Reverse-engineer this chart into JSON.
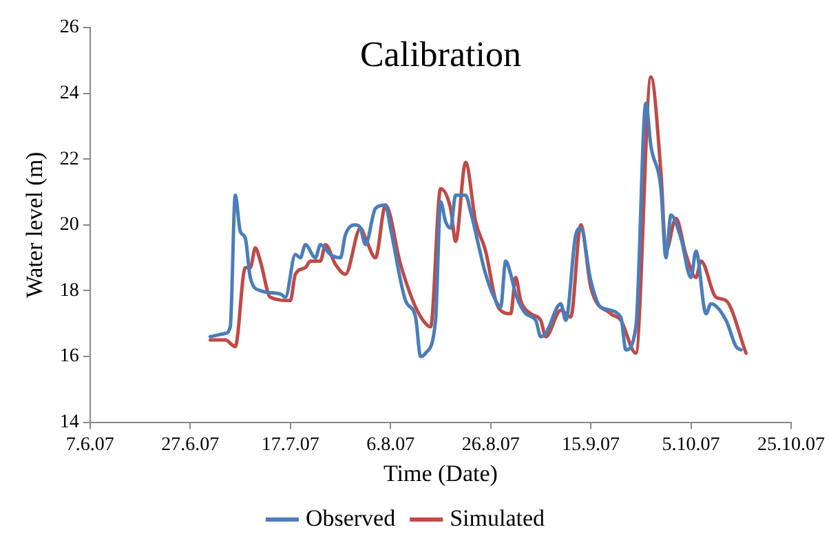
{
  "chart_data": {
    "type": "line",
    "title": "Calibration",
    "xlabel": "Time (Date)",
    "ylabel": "Water level (m)",
    "xlim": [
      "2007-06-07",
      "2007-10-25"
    ],
    "xticks": [
      {
        "value": "2007-06-07",
        "label": "7.6.07"
      },
      {
        "value": "2007-06-27",
        "label": "27.6.07"
      },
      {
        "value": "2007-07-17",
        "label": "17.7.07"
      },
      {
        "value": "2007-08-06",
        "label": "6.8.07"
      },
      {
        "value": "2007-08-26",
        "label": "26.8.07"
      },
      {
        "value": "2007-09-15",
        "label": "15.9.07"
      },
      {
        "value": "2007-10-05",
        "label": "5.10.07"
      },
      {
        "value": "2007-10-25",
        "label": "25.10.07"
      }
    ],
    "ylim": [
      14,
      26
    ],
    "yticks": [
      14,
      16,
      18,
      20,
      22,
      24,
      26
    ],
    "grid": false,
    "legend": "bottom",
    "marker": "none",
    "line_style": "solid",
    "series": [
      {
        "name": "Observed",
        "color": "#4a7ebb",
        "x": [
          "2007-07-01",
          "2007-07-04",
          "2007-07-05",
          "2007-07-06",
          "2007-07-07",
          "2007-07-08",
          "2007-07-09",
          "2007-07-11",
          "2007-07-15",
          "2007-07-16",
          "2007-07-18",
          "2007-07-19",
          "2007-07-20",
          "2007-07-22",
          "2007-07-23",
          "2007-07-25",
          "2007-07-27",
          "2007-07-28",
          "2007-07-30",
          "2007-07-31",
          "2007-08-01",
          "2007-08-03",
          "2007-08-05",
          "2007-08-06",
          "2007-08-09",
          "2007-08-11",
          "2007-08-12",
          "2007-08-13",
          "2007-08-15",
          "2007-08-16",
          "2007-08-17",
          "2007-08-18",
          "2007-08-19",
          "2007-08-21",
          "2007-08-22",
          "2007-08-25",
          "2007-08-27",
          "2007-08-28",
          "2007-08-29",
          "2007-08-30",
          "2007-08-31",
          "2007-09-02",
          "2007-09-04",
          "2007-09-05",
          "2007-09-06",
          "2007-09-09",
          "2007-09-10",
          "2007-09-12",
          "2007-09-13",
          "2007-09-15",
          "2007-09-17",
          "2007-09-21",
          "2007-09-22",
          "2007-09-24",
          "2007-09-26",
          "2007-09-27",
          "2007-09-29",
          "2007-09-30",
          "2007-10-01",
          "2007-10-03",
          "2007-10-05",
          "2007-10-06",
          "2007-10-08",
          "2007-10-09",
          "2007-10-12",
          "2007-10-14",
          "2007-10-15"
        ],
        "values": [
          16.6,
          16.7,
          16.9,
          20.9,
          19.8,
          19.6,
          18.4,
          18.0,
          17.9,
          17.8,
          19.1,
          19.0,
          19.4,
          19.0,
          19.4,
          19.1,
          19.0,
          19.7,
          20.0,
          19.9,
          19.4,
          20.5,
          20.6,
          19.9,
          17.7,
          17.2,
          16.0,
          16.1,
          17.1,
          20.7,
          20.1,
          19.9,
          20.9,
          20.9,
          20.4,
          18.5,
          17.7,
          17.5,
          18.9,
          18.5,
          17.9,
          17.3,
          17.1,
          16.6,
          16.7,
          17.6,
          17.1,
          19.7,
          19.9,
          18.3,
          17.5,
          17.2,
          16.2,
          16.9,
          23.7,
          22.4,
          21.1,
          19.0,
          20.3,
          19.6,
          18.4,
          19.2,
          17.3,
          17.6,
          17.1,
          16.3,
          16.2
        ]
      },
      {
        "name": "Simulated",
        "color": "#be4b48",
        "x": [
          "2007-07-01",
          "2007-07-04",
          "2007-07-06",
          "2007-07-08",
          "2007-07-09",
          "2007-07-10",
          "2007-07-11",
          "2007-07-13",
          "2007-07-17",
          "2007-07-18",
          "2007-07-20",
          "2007-07-21",
          "2007-07-23",
          "2007-07-24",
          "2007-07-26",
          "2007-07-28",
          "2007-07-31",
          "2007-08-01",
          "2007-08-03",
          "2007-08-05",
          "2007-08-08",
          "2007-08-11",
          "2007-08-13",
          "2007-08-14",
          "2007-08-16",
          "2007-08-18",
          "2007-08-19",
          "2007-08-21",
          "2007-08-23",
          "2007-08-25",
          "2007-08-27",
          "2007-08-28",
          "2007-08-30",
          "2007-08-31",
          "2007-09-01",
          "2007-09-03",
          "2007-09-05",
          "2007-09-06",
          "2007-09-09",
          "2007-09-11",
          "2007-09-13",
          "2007-09-15",
          "2007-09-19",
          "2007-09-21",
          "2007-09-24",
          "2007-09-27",
          "2007-09-29",
          "2007-09-30",
          "2007-10-02",
          "2007-10-04",
          "2007-10-06",
          "2007-10-07",
          "2007-10-10",
          "2007-10-12",
          "2007-10-16"
        ],
        "values": [
          16.5,
          16.5,
          16.3,
          18.7,
          18.7,
          19.3,
          18.9,
          17.8,
          17.7,
          18.5,
          18.7,
          18.9,
          18.9,
          19.4,
          18.8,
          18.5,
          19.9,
          19.6,
          19.0,
          20.6,
          18.8,
          17.5,
          17.0,
          16.9,
          21.1,
          20.5,
          19.5,
          21.9,
          20.1,
          19.2,
          17.7,
          17.4,
          17.3,
          18.4,
          17.7,
          17.3,
          17.1,
          16.6,
          17.4,
          17.2,
          20.0,
          18.1,
          17.3,
          17.1,
          16.1,
          24.5,
          21.6,
          19.2,
          20.2,
          19.1,
          18.4,
          18.9,
          17.8,
          17.7,
          16.1
        ]
      }
    ]
  }
}
